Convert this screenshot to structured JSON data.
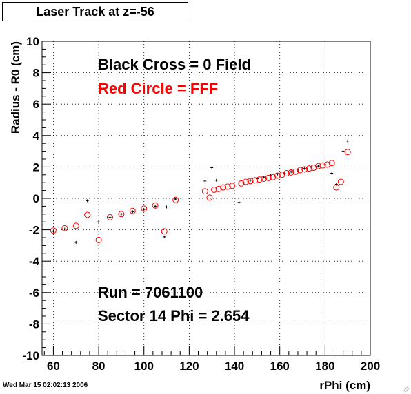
{
  "title": "Laser Track at z=-56",
  "timestamp": "Wed Mar 15 02:02:13 2006",
  "chart_data": {
    "type": "scatter",
    "xlabel": "rPhi (cm)",
    "ylabel": "Radius - R0 (cm)",
    "xlim": [
      55,
      200
    ],
    "ylim": [
      -10,
      10
    ],
    "x_ticks": [
      "60",
      "80",
      "100",
      "120",
      "140",
      "160",
      "180",
      "200"
    ],
    "x_tick_values": [
      60,
      80,
      100,
      120,
      140,
      160,
      180,
      200
    ],
    "y_ticks": [
      "-10",
      "-8",
      "-6",
      "-4",
      "-2",
      "0",
      "2",
      "4",
      "6",
      "8",
      "10"
    ],
    "y_tick_values": [
      -10,
      -8,
      -6,
      -4,
      -2,
      0,
      2,
      4,
      6,
      8,
      10
    ],
    "grid": true,
    "annotations": [
      {
        "text": "Black Cross  = 0 Field",
        "color": "#000000"
      },
      {
        "text": "Red Circle = FFF",
        "color": "#ff0000"
      },
      {
        "text": "Run = 7061100",
        "color": "#000000"
      },
      {
        "text": "Sector 14 Phi = 2.654",
        "color": "#000000"
      }
    ],
    "series": [
      {
        "marker": "cross",
        "color": "#000000",
        "points": [
          [
            60,
            -2.1
          ],
          [
            65,
            -1.95
          ],
          [
            70,
            -2.8
          ],
          [
            75,
            -0.15
          ],
          [
            80,
            -1.5
          ],
          [
            85,
            -1.2
          ],
          [
            90,
            -1.0
          ],
          [
            95,
            -0.85
          ],
          [
            100,
            -0.7
          ],
          [
            105,
            -0.5
          ],
          [
            109,
            -2.45
          ],
          [
            110,
            -0.55
          ],
          [
            114,
            -0.05
          ],
          [
            127,
            1.1
          ],
          [
            130,
            1.95
          ],
          [
            132,
            1.15
          ],
          [
            142,
            -0.25
          ],
          [
            144,
            1.0
          ],
          [
            147,
            1.15
          ],
          [
            150,
            1.25
          ],
          [
            153,
            1.35
          ],
          [
            156,
            1.45
          ],
          [
            159,
            1.55
          ],
          [
            162,
            1.6
          ],
          [
            165,
            1.7
          ],
          [
            168,
            1.8
          ],
          [
            171,
            1.9
          ],
          [
            174,
            2.0
          ],
          [
            177,
            2.05
          ],
          [
            180,
            2.15
          ],
          [
            183,
            1.6
          ],
          [
            185,
            0.9
          ],
          [
            188,
            3.0
          ],
          [
            190,
            3.65
          ]
        ]
      },
      {
        "marker": "circle",
        "color": "#ff0000",
        "points": [
          [
            60,
            -2.05
          ],
          [
            65,
            -1.9
          ],
          [
            70,
            -1.75
          ],
          [
            75,
            -1.05
          ],
          [
            80,
            -2.65
          ],
          [
            85,
            -1.2
          ],
          [
            90,
            -1.0
          ],
          [
            95,
            -0.8
          ],
          [
            100,
            -0.65
          ],
          [
            105,
            -0.45
          ],
          [
            109,
            -2.1
          ],
          [
            114,
            -0.1
          ],
          [
            127,
            0.45
          ],
          [
            129,
            0.05
          ],
          [
            131,
            0.55
          ],
          [
            133,
            0.6
          ],
          [
            135,
            0.7
          ],
          [
            137,
            0.75
          ],
          [
            139,
            0.8
          ],
          [
            143,
            0.95
          ],
          [
            145,
            1.05
          ],
          [
            147,
            1.1
          ],
          [
            149,
            1.15
          ],
          [
            151,
            1.2
          ],
          [
            153,
            1.25
          ],
          [
            155,
            1.3
          ],
          [
            157,
            1.35
          ],
          [
            159,
            1.45
          ],
          [
            161,
            1.5
          ],
          [
            163,
            1.6
          ],
          [
            165,
            1.65
          ],
          [
            167,
            1.7
          ],
          [
            169,
            1.8
          ],
          [
            171,
            1.85
          ],
          [
            173,
            1.9
          ],
          [
            175,
            1.95
          ],
          [
            177,
            2.05
          ],
          [
            179,
            2.1
          ],
          [
            181,
            2.15
          ],
          [
            183,
            2.25
          ],
          [
            185,
            0.7
          ],
          [
            187,
            1.05
          ],
          [
            190,
            2.95
          ]
        ]
      }
    ]
  }
}
